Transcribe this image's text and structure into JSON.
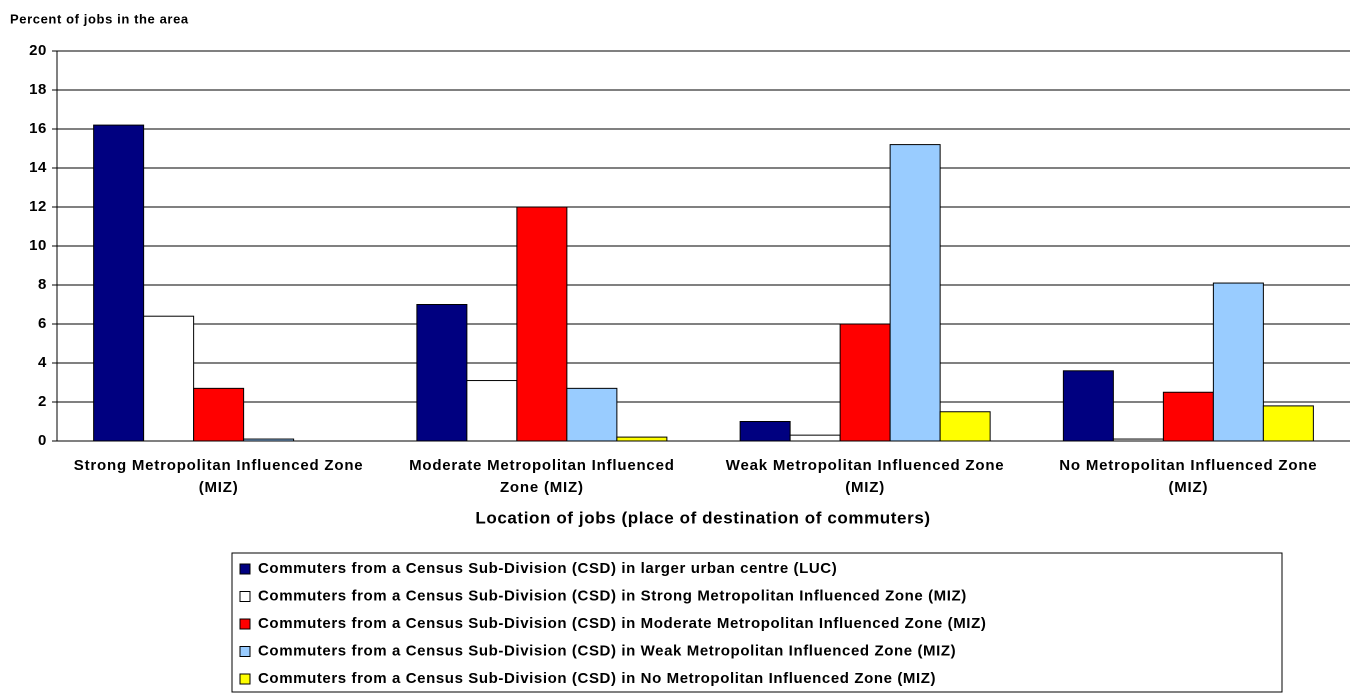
{
  "chart_data": {
    "type": "bar",
    "y_label": "Percent of jobs in the area",
    "x_label": "Location of jobs (place of destination of commuters)",
    "categories": [
      "Strong Metropolitan Influenced Zone (MIZ)",
      "Moderate Metropolitan Influenced Zone (MIZ)",
      "Weak Metropolitan Influenced Zone (MIZ)",
      "No Metropolitan Influenced Zone (MIZ)"
    ],
    "series": [
      {
        "name": "Commuters from a Census Sub-Division (CSD) in larger urban centre (LUC)",
        "color": "#000080",
        "values": [
          16.2,
          7.0,
          1.0,
          3.6
        ]
      },
      {
        "name": "Commuters from a Census Sub-Division (CSD) in Strong Metropolitan Influenced Zone (MIZ)",
        "color": "#ffffff",
        "values": [
          6.4,
          3.1,
          0.3,
          0.1
        ]
      },
      {
        "name": "Commuters from a Census Sub-Division (CSD) in Moderate Metropolitan Influenced Zone (MIZ)",
        "color": "#ff0000",
        "values": [
          2.7,
          12.0,
          6.0,
          2.5
        ]
      },
      {
        "name": "Commuters from a Census Sub-Division (CSD) in Weak Metropolitan Influenced Zone (MIZ)",
        "color": "#99ccff",
        "values": [
          0.1,
          2.7,
          15.2,
          8.1
        ]
      },
      {
        "name": "Commuters from a Census Sub-Division (CSD) in No Metropolitan Influenced Zone (MIZ)",
        "color": "#ffff00",
        "values": [
          0,
          0.2,
          1.5,
          1.8
        ]
      }
    ],
    "ylim": [
      0,
      20
    ],
    "yticks": [
      0,
      2,
      4,
      6,
      8,
      10,
      12,
      14,
      16,
      18,
      20
    ],
    "grid": true
  }
}
